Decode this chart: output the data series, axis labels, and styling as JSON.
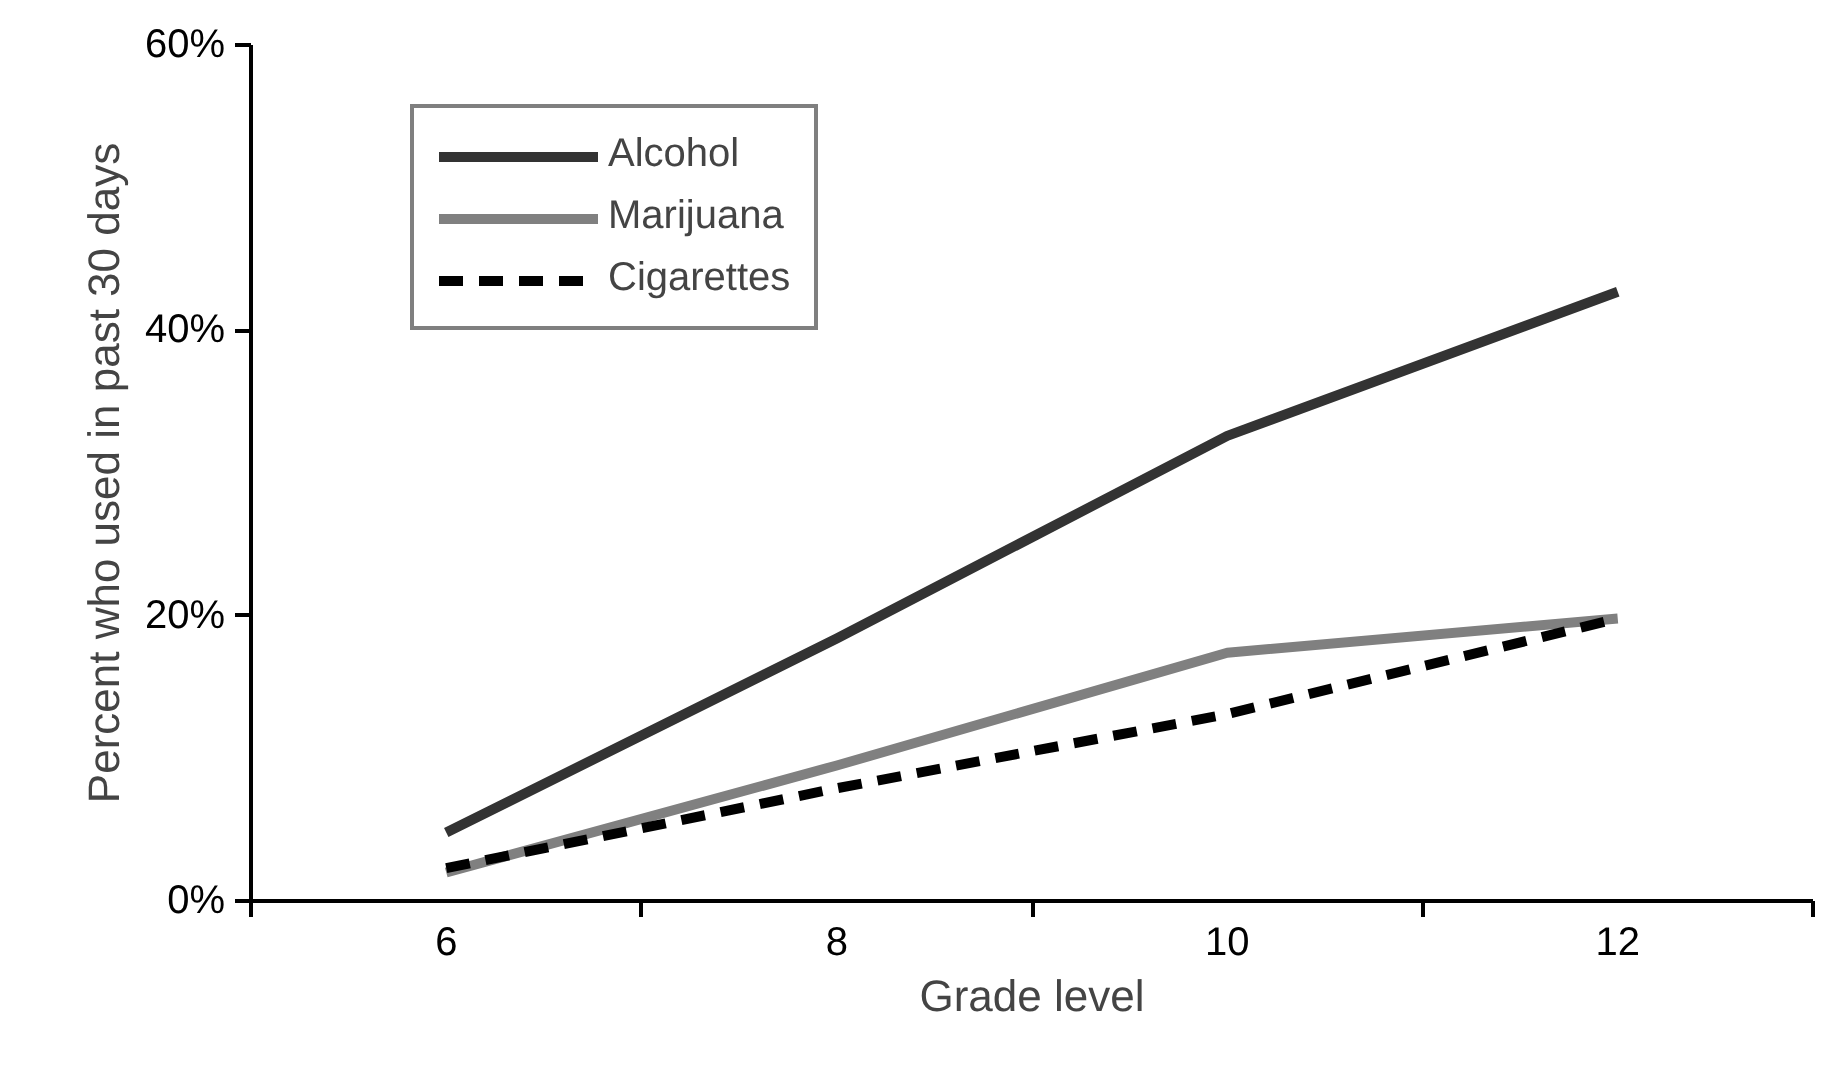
{
  "chart_data": {
    "type": "line",
    "xlabel": "Grade level",
    "ylabel": "Percent who used in past 30 days",
    "categories": [
      "6",
      "8",
      "10",
      "12"
    ],
    "series": [
      {
        "name": "Alcohol",
        "color": "#333333",
        "values": [
          4.8,
          18.4,
          32.6,
          42.7
        ],
        "line_style": "solid"
      },
      {
        "name": "Marijuana",
        "color": "#808080",
        "values": [
          2.0,
          9.5,
          17.4,
          19.8
        ],
        "line_style": "solid"
      },
      {
        "name": "Cigarettes",
        "color": "#000000",
        "values": [
          2.3,
          7.9,
          13.1,
          19.8
        ],
        "line_style": "dashed"
      }
    ],
    "ylim": [
      0,
      60
    ],
    "yticks": [
      {
        "value": 0,
        "label": "0%"
      },
      {
        "value": 20,
        "label": "20%"
      },
      {
        "value": 40,
        "label": "40%"
      },
      {
        "value": 60,
        "label": "60%"
      }
    ],
    "grid": false,
    "legend": "top left",
    "marker": "none"
  }
}
